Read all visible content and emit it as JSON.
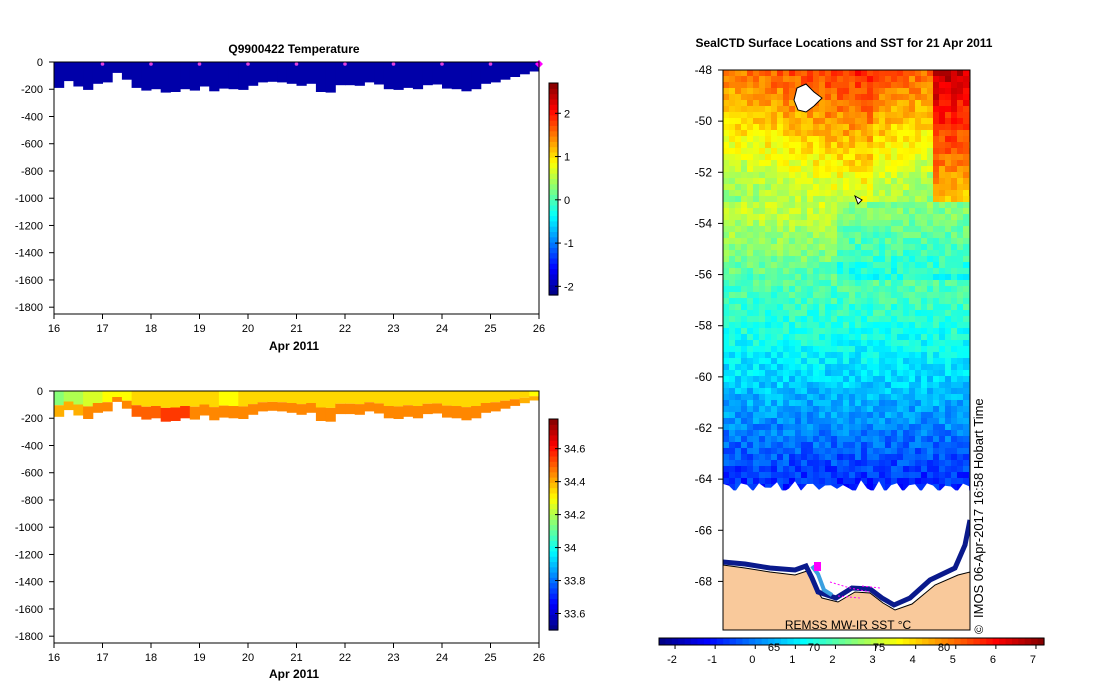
{
  "chart_data": [
    {
      "type": "heatmap",
      "title": "Q9900422  Temperature",
      "xlabel": "Apr 2011",
      "x_ticks": [
        "16",
        "17",
        "18",
        "19",
        "20",
        "21",
        "22",
        "23",
        "24",
        "25",
        "26"
      ],
      "y_ticks": [
        "0",
        "-200",
        "-400",
        "-600",
        "-800",
        "-1000",
        "-1200",
        "-1400",
        "-1600",
        "-1800"
      ],
      "xlim": [
        16,
        26
      ],
      "ylim": [
        -1850,
        0
      ],
      "colorbar": {
        "ticks": [
          "-2",
          "-1",
          "0",
          "1",
          "2"
        ],
        "range": [
          -2.2,
          2.7
        ],
        "colormap": "jet"
      },
      "profile_days": [
        16.1,
        16.3,
        16.5,
        16.7,
        16.9,
        17.1,
        17.3,
        17.5,
        17.7,
        17.9,
        18.1,
        18.3,
        18.5,
        18.7,
        18.9,
        19.1,
        19.3,
        19.5,
        19.7,
        19.9,
        20.1,
        20.3,
        20.5,
        20.7,
        20.9,
        21.1,
        21.3,
        21.5,
        21.7,
        21.9,
        22.1,
        22.3,
        22.5,
        22.7,
        22.9,
        23.1,
        23.3,
        23.5,
        23.7,
        23.9,
        24.1,
        24.3,
        24.5,
        24.7,
        24.9,
        25.1,
        25.3,
        25.5,
        25.7,
        25.9
      ],
      "profile_depths": [
        -190,
        -140,
        -180,
        -205,
        -160,
        -150,
        -80,
        -130,
        -190,
        -210,
        -200,
        -225,
        -220,
        -200,
        -210,
        -180,
        -215,
        -195,
        -200,
        -205,
        -175,
        -150,
        -145,
        -150,
        -160,
        -175,
        -160,
        -220,
        -225,
        -170,
        -170,
        -175,
        -150,
        -165,
        -200,
        -205,
        -190,
        -200,
        -170,
        -165,
        -195,
        -200,
        -215,
        -200,
        -160,
        -150,
        -130,
        -110,
        -90,
        -70
      ],
      "profile_value": -2.0,
      "surface_markers_days": [
        17,
        18,
        19,
        20,
        21,
        22,
        23,
        24,
        25
      ],
      "last_marker_day": 26
    },
    {
      "type": "heatmap",
      "title": "",
      "xlabel": "Apr 2011",
      "x_ticks": [
        "16",
        "17",
        "18",
        "19",
        "20",
        "21",
        "22",
        "23",
        "24",
        "25",
        "26"
      ],
      "y_ticks": [
        "0",
        "-200",
        "-400",
        "-600",
        "-800",
        "-1000",
        "-1200",
        "-1400",
        "-1600",
        "-1800"
      ],
      "xlim": [
        16,
        26
      ],
      "ylim": [
        -1850,
        0
      ],
      "colorbar": {
        "ticks": [
          "34.6",
          "34.4",
          "34.2",
          "34",
          "33.8",
          "33.6"
        ],
        "tick_values": [
          34.6,
          34.4,
          34.2,
          34.0,
          33.8,
          33.6
        ],
        "range": [
          33.5,
          34.78
        ],
        "colormap": "jet"
      },
      "profile_days": [
        16.1,
        16.3,
        16.5,
        16.7,
        16.9,
        17.1,
        17.3,
        17.5,
        17.7,
        17.9,
        18.1,
        18.3,
        18.5,
        18.7,
        18.9,
        19.1,
        19.3,
        19.5,
        19.7,
        19.9,
        20.1,
        20.3,
        20.5,
        20.7,
        20.9,
        21.1,
        21.3,
        21.5,
        21.7,
        21.9,
        22.1,
        22.3,
        22.5,
        22.7,
        22.9,
        23.1,
        23.3,
        23.5,
        23.7,
        23.9,
        24.1,
        24.3,
        24.5,
        24.7,
        24.9,
        25.1,
        25.3,
        25.5,
        25.7,
        25.9
      ],
      "profile_depths": [
        -190,
        -140,
        -180,
        -205,
        -160,
        -150,
        -80,
        -130,
        -190,
        -210,
        -200,
        -225,
        -220,
        -200,
        -210,
        -180,
        -215,
        -195,
        -200,
        -205,
        -175,
        -150,
        -145,
        -150,
        -160,
        -175,
        -160,
        -220,
        -225,
        -170,
        -170,
        -175,
        -150,
        -165,
        -200,
        -205,
        -190,
        -200,
        -170,
        -165,
        -195,
        -200,
        -215,
        -200,
        -160,
        -150,
        -130,
        -110,
        -90,
        -70
      ],
      "surface_values": [
        34.15,
        34.2,
        34.2,
        34.25,
        34.25,
        34.3,
        34.3,
        34.3,
        34.35,
        34.35,
        34.35,
        34.35,
        34.35,
        34.35,
        34.35,
        34.35,
        34.35,
        34.3,
        34.3,
        34.35,
        34.35,
        34.35,
        34.35,
        34.35,
        34.35,
        34.35,
        34.35,
        34.35,
        34.35,
        34.35,
        34.35,
        34.35,
        34.35,
        34.35,
        34.35,
        34.35,
        34.35,
        34.35,
        34.35,
        34.35,
        34.35,
        34.35,
        34.35,
        34.35,
        34.35,
        34.35,
        34.35,
        34.35,
        34.35,
        34.3
      ],
      "deep_values": [
        34.4,
        34.4,
        34.4,
        34.45,
        34.45,
        34.45,
        34.45,
        34.45,
        34.5,
        34.5,
        34.5,
        34.55,
        34.55,
        34.55,
        34.45,
        34.45,
        34.45,
        34.45,
        34.45,
        34.45,
        34.45,
        34.45,
        34.45,
        34.45,
        34.45,
        34.45,
        34.45,
        34.45,
        34.45,
        34.45,
        34.45,
        34.45,
        34.45,
        34.45,
        34.45,
        34.45,
        34.45,
        34.45,
        34.45,
        34.45,
        34.45,
        34.45,
        34.45,
        34.45,
        34.45,
        34.45,
        34.45,
        34.45,
        34.4,
        34.4
      ]
    },
    {
      "type": "heatmap",
      "title": "SealCTD Surface Locations and SST for 21 Apr 2011",
      "y_ticks": [
        "-48",
        "-50",
        "-52",
        "-54",
        "-56",
        "-58",
        "-60",
        "-62",
        "-64",
        "-66",
        "-68"
      ],
      "ylim": [
        -69.9,
        -48
      ],
      "ice_edge_lat": -64.3,
      "colorbar": {
        "ticks": [
          "-2",
          "-1",
          "0",
          "1",
          "2",
          "3",
          "4",
          "5",
          "6",
          "7"
        ],
        "range": [
          -2.4,
          7.2
        ],
        "colormap": "jet"
      },
      "overlay_ticks": [
        "65",
        "70",
        "75",
        "80"
      ],
      "sst_by_lat": [
        [
          -48,
          5.5
        ],
        [
          -50,
          4.5
        ],
        [
          -52,
          3.5
        ],
        [
          -54,
          2.8
        ],
        [
          -56,
          2.0
        ],
        [
          -58,
          1.5
        ],
        [
          -60,
          0.8
        ],
        [
          -62,
          0.0
        ],
        [
          -64,
          -0.8
        ]
      ],
      "stamp": "IMOS 06-Apr-2017 16:58 Hobart Time",
      "copyright": "©",
      "source_label": "REMSS MW-IR SST °C",
      "land_color": "#f9c99b"
    }
  ]
}
